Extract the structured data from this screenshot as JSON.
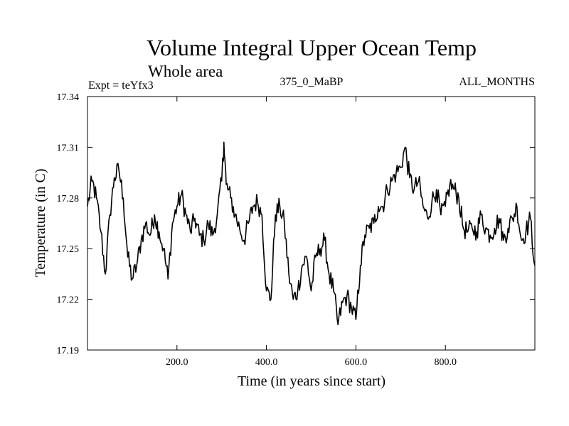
{
  "chart_data": {
    "type": "line",
    "title": "Volume Integral Upper Ocean Temp",
    "subtitle": "Whole area",
    "expt_label": "Expt = teYfx3",
    "run_label": "375_0_MaBP",
    "months_label": "ALL_MONTHS",
    "xlabel": "Time (in years since start)",
    "ylabel": "Temperature (in C)",
    "xlim": [
      0,
      1000
    ],
    "ylim": [
      17.19,
      17.34
    ],
    "xticks": [
      200,
      400,
      600,
      800
    ],
    "xtick_labels": [
      "200.0",
      "400.0",
      "600.0",
      "800.0"
    ],
    "yticks": [
      17.19,
      17.22,
      17.25,
      17.28,
      17.31,
      17.34
    ],
    "ytick_labels": [
      "17.19",
      "17.22",
      "17.25",
      "17.28",
      "17.31",
      "17.34"
    ],
    "series": [
      {
        "name": "Volume Integral Upper Ocean Temp",
        "x": [
          0,
          10,
          20,
          30,
          40,
          50,
          60,
          70,
          80,
          90,
          100,
          110,
          120,
          130,
          140,
          150,
          160,
          170,
          180,
          190,
          200,
          210,
          220,
          230,
          240,
          250,
          260,
          270,
          280,
          290,
          300,
          305,
          310,
          320,
          330,
          340,
          350,
          360,
          370,
          380,
          390,
          400,
          410,
          420,
          430,
          440,
          450,
          460,
          470,
          480,
          490,
          500,
          510,
          520,
          530,
          540,
          550,
          560,
          570,
          580,
          590,
          600,
          610,
          620,
          630,
          640,
          650,
          660,
          670,
          680,
          690,
          700,
          710,
          720,
          730,
          740,
          750,
          760,
          770,
          780,
          790,
          800,
          810,
          820,
          830,
          840,
          850,
          860,
          870,
          880,
          890,
          900,
          910,
          920,
          930,
          940,
          950,
          960,
          970,
          980,
          990,
          1000
        ],
        "values": [
          17.275,
          17.29,
          17.28,
          17.26,
          17.235,
          17.27,
          17.292,
          17.297,
          17.28,
          17.245,
          17.232,
          17.24,
          17.255,
          17.265,
          17.258,
          17.27,
          17.26,
          17.25,
          17.232,
          17.265,
          17.275,
          17.282,
          17.27,
          17.26,
          17.268,
          17.258,
          17.255,
          17.265,
          17.258,
          17.27,
          17.29,
          17.313,
          17.288,
          17.28,
          17.27,
          17.262,
          17.255,
          17.265,
          17.275,
          17.278,
          17.27,
          17.225,
          17.22,
          17.27,
          17.275,
          17.265,
          17.235,
          17.22,
          17.225,
          17.24,
          17.245,
          17.225,
          17.245,
          17.25,
          17.255,
          17.235,
          17.225,
          17.205,
          17.218,
          17.222,
          17.215,
          17.208,
          17.24,
          17.258,
          17.262,
          17.265,
          17.275,
          17.275,
          17.285,
          17.29,
          17.295,
          17.298,
          17.31,
          17.292,
          17.285,
          17.29,
          17.275,
          17.268,
          17.278,
          17.285,
          17.27,
          17.275,
          17.288,
          17.285,
          17.28,
          17.262,
          17.26,
          17.262,
          17.26,
          17.27,
          17.262,
          17.258,
          17.262,
          17.268,
          17.255,
          17.262,
          17.268,
          17.275,
          17.255,
          17.26,
          17.268,
          17.24
        ]
      }
    ]
  }
}
